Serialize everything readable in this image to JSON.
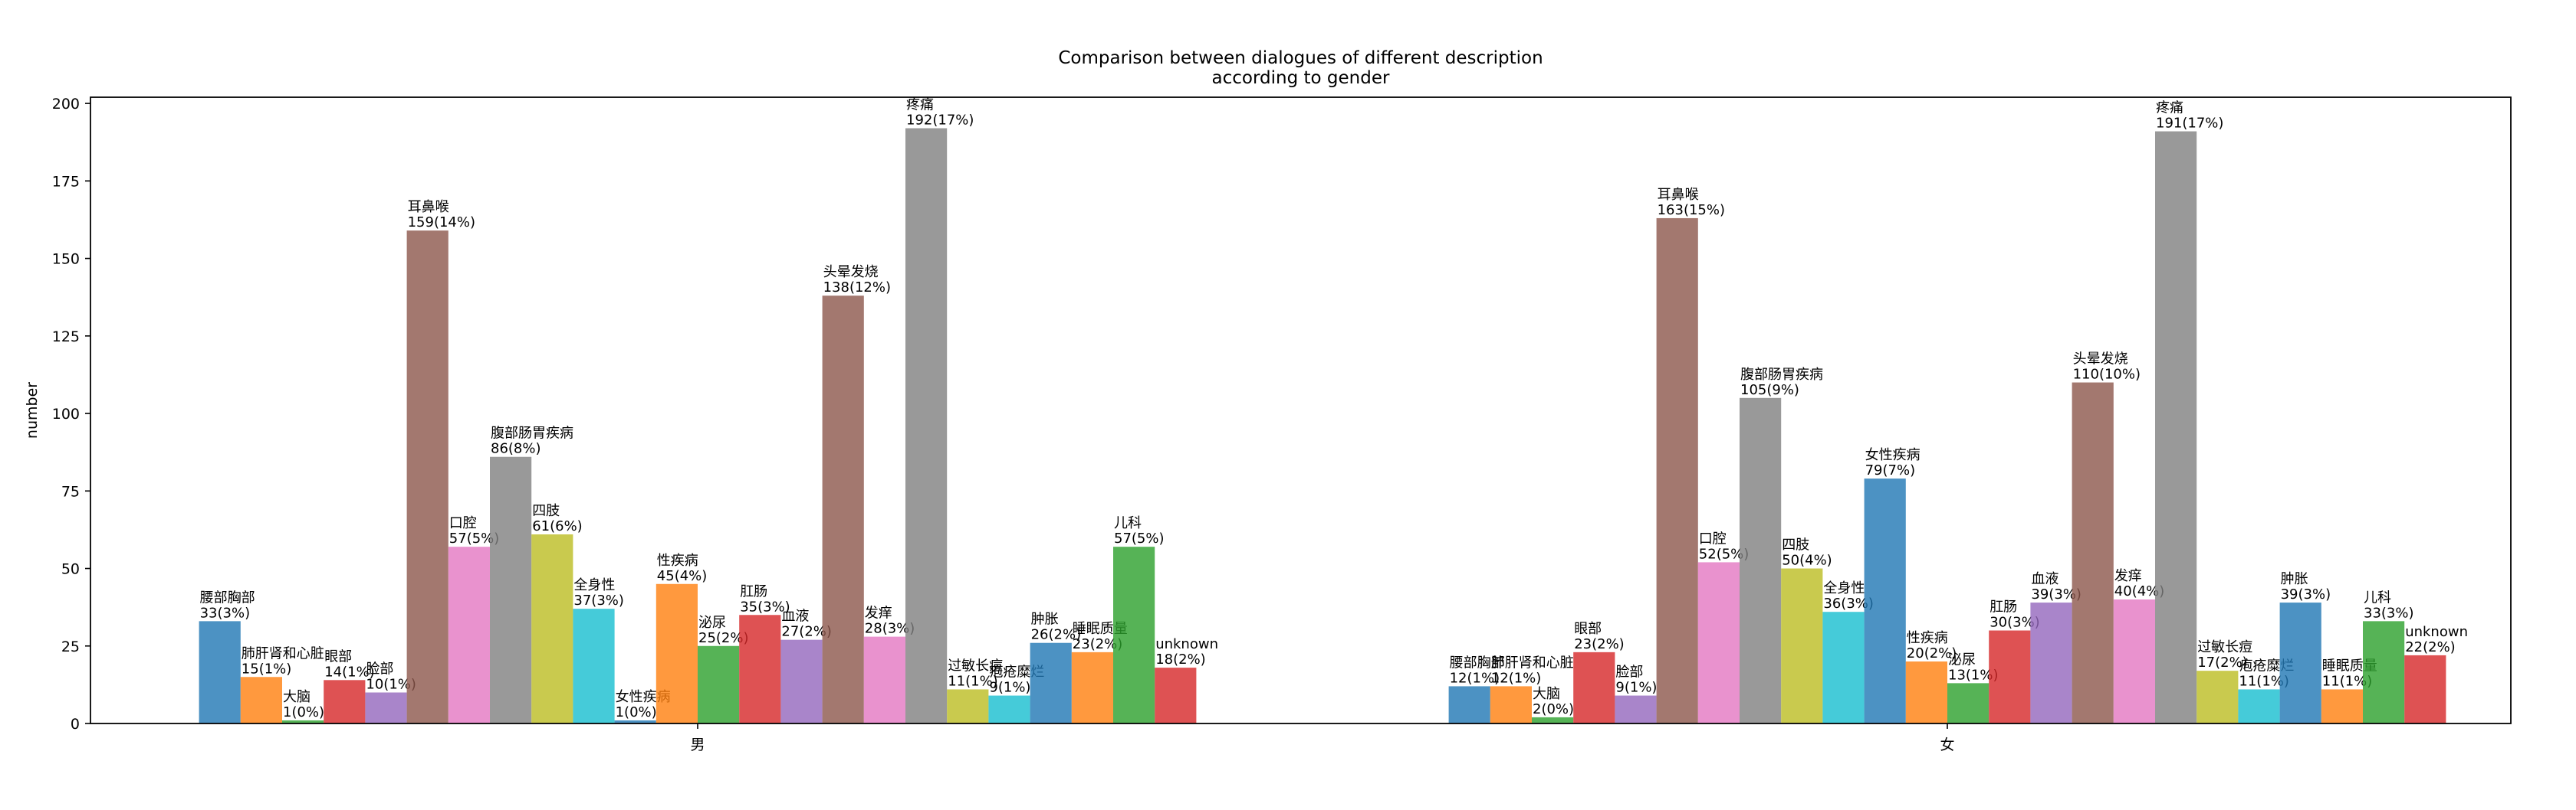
{
  "chart_data": {
    "type": "bar",
    "title": "Comparison between dialogues of different description\naccording to gender",
    "xlabel": "",
    "ylabel": "number",
    "ylim": [
      0,
      202
    ],
    "yticks": [
      0,
      25,
      50,
      75,
      100,
      125,
      150,
      175,
      200
    ],
    "grid": false,
    "legend": "none",
    "groups": [
      {
        "label": "男",
        "bars": [
          {
            "name": "腰部胸部",
            "value": 33,
            "label": "33(3%)",
            "color": "#1f77b4"
          },
          {
            "name": "肺肝肾和心脏",
            "value": 15,
            "label": "15(1%)",
            "color": "#ff7f0e"
          },
          {
            "name": "大脑",
            "value": 1,
            "label": "1(0%)",
            "color": "#2ca02c"
          },
          {
            "name": "眼部",
            "value": 14,
            "label": "14(1%)",
            "color": "#d62728"
          },
          {
            "name": "脸部",
            "value": 10,
            "label": "10(1%)",
            "color": "#9467bd"
          },
          {
            "name": "耳鼻喉",
            "value": 159,
            "label": "159(14%)",
            "color": "#8c564b"
          },
          {
            "name": "口腔",
            "value": 57,
            "label": "57(5%)",
            "color": "#e377c2"
          },
          {
            "name": "腹部肠胃疾病",
            "value": 86,
            "label": "86(8%)",
            "color": "#7f7f7f"
          },
          {
            "name": "四肢",
            "value": 61,
            "label": "61(6%)",
            "color": "#bcbd22"
          },
          {
            "name": "全身性",
            "value": 37,
            "label": "37(3%)",
            "color": "#17becf"
          },
          {
            "name": "女性疾病",
            "value": 1,
            "label": "1(0%)",
            "color": "#1f77b4"
          },
          {
            "name": "性疾病",
            "value": 45,
            "label": "45(4%)",
            "color": "#ff7f0e"
          },
          {
            "name": "泌尿",
            "value": 25,
            "label": "25(2%)",
            "color": "#2ca02c"
          },
          {
            "name": "肛肠",
            "value": 35,
            "label": "35(3%)",
            "color": "#d62728"
          },
          {
            "name": "血液",
            "value": 27,
            "label": "27(2%)",
            "color": "#9467bd"
          },
          {
            "name": "头晕发烧",
            "value": 138,
            "label": "138(12%)",
            "color": "#8c564b"
          },
          {
            "name": "发痒",
            "value": 28,
            "label": "28(3%)",
            "color": "#e377c2"
          },
          {
            "name": "疼痛",
            "value": 192,
            "label": "192(17%)",
            "color": "#7f7f7f"
          },
          {
            "name": "过敏长痘",
            "value": 11,
            "label": "11(1%)",
            "color": "#bcbd22"
          },
          {
            "name": "疱疮糜烂",
            "value": 9,
            "label": "9(1%)",
            "color": "#17becf"
          },
          {
            "name": "肿胀",
            "value": 26,
            "label": "26(2%)",
            "color": "#1f77b4"
          },
          {
            "name": "睡眠质量",
            "value": 23,
            "label": "23(2%)",
            "color": "#ff7f0e"
          },
          {
            "name": "儿科",
            "value": 57,
            "label": "57(5%)",
            "color": "#2ca02c"
          },
          {
            "name": "unknown",
            "value": 18,
            "label": "18(2%)",
            "color": "#d62728"
          }
        ]
      },
      {
        "label": "女",
        "bars": [
          {
            "name": "腰部胸部",
            "value": 12,
            "label": "12(1%)",
            "color": "#1f77b4"
          },
          {
            "name": "肺肝肾和心脏",
            "value": 12,
            "label": "12(1%)",
            "color": "#ff7f0e"
          },
          {
            "name": "大脑",
            "value": 2,
            "label": "2(0%)",
            "color": "#2ca02c"
          },
          {
            "name": "眼部",
            "value": 23,
            "label": "23(2%)",
            "color": "#d62728"
          },
          {
            "name": "脸部",
            "value": 9,
            "label": "9(1%)",
            "color": "#9467bd"
          },
          {
            "name": "耳鼻喉",
            "value": 163,
            "label": "163(15%)",
            "color": "#8c564b"
          },
          {
            "name": "口腔",
            "value": 52,
            "label": "52(5%)",
            "color": "#e377c2"
          },
          {
            "name": "腹部肠胃疾病",
            "value": 105,
            "label": "105(9%)",
            "color": "#7f7f7f"
          },
          {
            "name": "四肢",
            "value": 50,
            "label": "50(4%)",
            "color": "#bcbd22"
          },
          {
            "name": "全身性",
            "value": 36,
            "label": "36(3%)",
            "color": "#17becf"
          },
          {
            "name": "女性疾病",
            "value": 79,
            "label": "79(7%)",
            "color": "#1f77b4"
          },
          {
            "name": "性疾病",
            "value": 20,
            "label": "20(2%)",
            "color": "#ff7f0e"
          },
          {
            "name": "泌尿",
            "value": 13,
            "label": "13(1%)",
            "color": "#2ca02c"
          },
          {
            "name": "肛肠",
            "value": 30,
            "label": "30(3%)",
            "color": "#d62728"
          },
          {
            "name": "血液",
            "value": 39,
            "label": "39(3%)",
            "color": "#9467bd"
          },
          {
            "name": "头晕发烧",
            "value": 110,
            "label": "110(10%)",
            "color": "#8c564b"
          },
          {
            "name": "发痒",
            "value": 40,
            "label": "40(4%)",
            "color": "#e377c2"
          },
          {
            "name": "疼痛",
            "value": 191,
            "label": "191(17%)",
            "color": "#7f7f7f"
          },
          {
            "name": "过敏长痘",
            "value": 17,
            "label": "17(2%)",
            "color": "#bcbd22"
          },
          {
            "name": "疱疮糜烂",
            "value": 11,
            "label": "11(1%)",
            "color": "#17becf"
          },
          {
            "name": "肿胀",
            "value": 39,
            "label": "39(3%)",
            "color": "#1f77b4"
          },
          {
            "name": "睡眠质量",
            "value": 11,
            "label": "11(1%)",
            "color": "#ff7f0e"
          },
          {
            "name": "儿科",
            "value": 33,
            "label": "33(3%)",
            "color": "#2ca02c"
          },
          {
            "name": "unknown",
            "value": 22,
            "label": "22(2%)",
            "color": "#d62728"
          }
        ]
      }
    ]
  }
}
